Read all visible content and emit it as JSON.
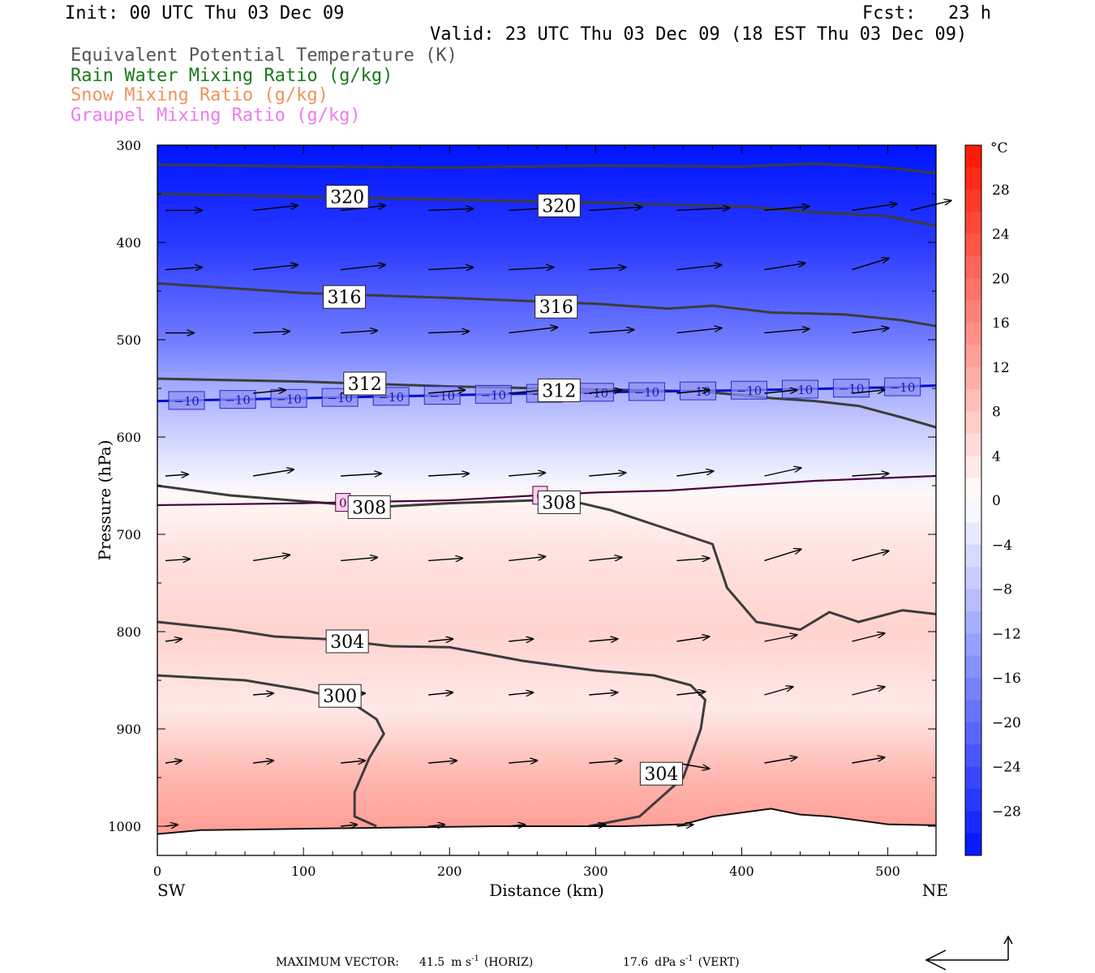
{
  "header": {
    "init": "Init: 00 UTC Thu 03 Dec 09",
    "fcst": "Fcst:   23 h",
    "valid": "Valid: 23 UTC Thu 03 Dec 09 (18 EST Thu 03 Dec 09)",
    "fields": [
      {
        "text": "Equivalent Potential Temperature (K)",
        "color": "#555555"
      },
      {
        "text": "Rain Water Mixing Ratio (g/kg)",
        "color": "#1a7a1a"
      },
      {
        "text": "Snow Mixing Ratio (g/kg)",
        "color": "#f0935a"
      },
      {
        "text": "Graupel Mixing Ratio (g/kg)",
        "color": "#ee7bee"
      }
    ]
  },
  "footer": {
    "max_vector_label": "MAXIMUM VECTOR:",
    "horiz_value": "41.5",
    "horiz_unit": "m s",
    "horiz_exp": "-1",
    "horiz_tag": "(HORIZ)",
    "vert_value": "17.6",
    "vert_unit": "dPa s",
    "vert_exp": "-1",
    "vert_tag": "(VERT)"
  },
  "chart_data": {
    "type": "cross-section",
    "xlabel": "Distance (km)",
    "ylabel": "Pressure (hPa)",
    "xlim": [
      0,
      533
    ],
    "ylim": [
      1030,
      300
    ],
    "x_ticks": [
      0,
      100,
      200,
      300,
      400,
      500
    ],
    "y_ticks": [
      300,
      400,
      500,
      600,
      700,
      800,
      900,
      1000
    ],
    "left_end_label": "SW",
    "right_end_label": "NE",
    "colorbar": {
      "unit": "°C",
      "range": [
        -32,
        32
      ],
      "tick_values": [
        28,
        24,
        20,
        16,
        12,
        8,
        4,
        0,
        -4,
        -8,
        -12,
        -16,
        -20,
        -24,
        -28
      ],
      "tick_labels": [
        "28",
        "24",
        "20",
        "16",
        "12",
        "8",
        "4",
        "0",
        "−4",
        "−8",
        "−12",
        "−16",
        "−20",
        "−24",
        "−28"
      ]
    },
    "temperature_levels": [
      {
        "p": 300,
        "t": -32
      },
      {
        "p": 400,
        "t": -27
      },
      {
        "p": 500,
        "t": -18
      },
      {
        "p": 550,
        "t": -11
      },
      {
        "p": 600,
        "t": -6
      },
      {
        "p": 640,
        "t": -2
      },
      {
        "p": 660,
        "t": 1
      },
      {
        "p": 720,
        "t": 4
      },
      {
        "p": 800,
        "t": 6
      },
      {
        "p": 880,
        "t": 3
      },
      {
        "p": 950,
        "t": 10
      },
      {
        "p": 1000,
        "t": 13
      }
    ],
    "theta_e_contours": [
      {
        "value": "320",
        "points": [
          [
            0,
            320
          ],
          [
            100,
            322
          ],
          [
            200,
            323
          ],
          [
            300,
            321
          ],
          [
            400,
            322
          ],
          [
            450,
            319
          ],
          [
            500,
            323
          ],
          [
            533,
            329
          ]
        ]
      },
      {
        "value": "320",
        "points": [
          [
            0,
            350
          ],
          [
            100,
            353
          ],
          [
            200,
            356
          ],
          [
            300,
            359
          ],
          [
            400,
            363
          ],
          [
            450,
            369
          ],
          [
            500,
            373
          ],
          [
            533,
            383
          ]
        ]
      },
      {
        "value": "316",
        "points": [
          [
            0,
            442
          ],
          [
            100,
            452
          ],
          [
            200,
            457
          ],
          [
            300,
            463
          ],
          [
            350,
            468
          ],
          [
            380,
            465
          ],
          [
            420,
            472
          ],
          [
            470,
            474
          ],
          [
            510,
            480
          ],
          [
            533,
            486
          ]
        ]
      },
      {
        "value": "312",
        "points": [
          [
            0,
            540
          ],
          [
            100,
            543
          ],
          [
            200,
            548
          ],
          [
            300,
            551
          ],
          [
            370,
            553
          ],
          [
            400,
            557
          ],
          [
            420,
            560
          ],
          [
            450,
            563
          ],
          [
            480,
            568
          ],
          [
            510,
            580
          ],
          [
            533,
            590
          ]
        ]
      },
      {
        "value": "308",
        "points": [
          [
            0,
            650
          ],
          [
            50,
            660
          ],
          [
            100,
            666
          ],
          [
            150,
            672
          ],
          [
            200,
            668
          ],
          [
            260,
            665
          ],
          [
            290,
            668
          ],
          [
            310,
            675
          ],
          [
            340,
            690
          ],
          [
            380,
            710
          ],
          [
            390,
            755
          ],
          [
            410,
            790
          ],
          [
            440,
            798
          ],
          [
            460,
            780
          ],
          [
            480,
            790
          ],
          [
            510,
            778
          ],
          [
            533,
            782
          ]
        ]
      },
      {
        "value": "304",
        "points": [
          [
            0,
            790
          ],
          [
            50,
            798
          ],
          [
            80,
            805
          ],
          [
            120,
            808
          ],
          [
            160,
            815
          ],
          [
            200,
            816
          ],
          [
            250,
            830
          ],
          [
            300,
            840
          ],
          [
            340,
            845
          ],
          [
            365,
            855
          ],
          [
            375,
            870
          ],
          [
            372,
            900
          ],
          [
            360,
            950
          ],
          [
            330,
            990
          ],
          [
            295,
            1000
          ]
        ]
      },
      {
        "value": "300",
        "points": [
          [
            0,
            845
          ],
          [
            60,
            850
          ],
          [
            100,
            860
          ],
          [
            130,
            870
          ],
          [
            150,
            890
          ],
          [
            155,
            905
          ],
          [
            145,
            930
          ],
          [
            135,
            965
          ],
          [
            135,
            990
          ],
          [
            150,
            1000
          ]
        ]
      }
    ],
    "contour_labels": [
      {
        "text": "320",
        "x": 130,
        "p": 353
      },
      {
        "text": "320",
        "x": 275,
        "p": 362
      },
      {
        "text": "316",
        "x": 128,
        "p": 456
      },
      {
        "text": "316",
        "x": 273,
        "p": 466
      },
      {
        "text": "312",
        "x": 142,
        "p": 545
      },
      {
        "text": "312",
        "x": 275,
        "p": 552
      },
      {
        "text": "308",
        "x": 145,
        "p": 672
      },
      {
        "text": "308",
        "x": 275,
        "p": 667
      },
      {
        "text": "304",
        "x": 130,
        "p": 810
      },
      {
        "text": "304",
        "x": 345,
        "p": 946
      },
      {
        "text": "300",
        "x": 125,
        "p": 866
      }
    ],
    "isotherm_minus10": {
      "value": "−10",
      "points": [
        [
          0,
          563
        ],
        [
          100,
          560
        ],
        [
          200,
          557
        ],
        [
          300,
          554
        ],
        [
          400,
          552
        ],
        [
          500,
          549
        ],
        [
          533,
          547
        ]
      ],
      "label_x": [
        20,
        55,
        90,
        125,
        160,
        195,
        230,
        265,
        300,
        335,
        370,
        405,
        440,
        475,
        510
      ]
    },
    "isotherm_0": {
      "value": "0",
      "points": [
        [
          0,
          670
        ],
        [
          100,
          668
        ],
        [
          200,
          665
        ],
        [
          260,
          660
        ],
        [
          300,
          657
        ],
        [
          350,
          655
        ],
        [
          400,
          650
        ],
        [
          450,
          645
        ],
        [
          500,
          642
        ],
        [
          533,
          640
        ]
      ],
      "label_x": [
        127,
        262
      ]
    },
    "wind_rows": [
      {
        "p": 367,
        "arrows": [
          [
            0,
            367,
            45,
            0
          ],
          [
            60,
            367,
            55,
            -6
          ],
          [
            120,
            367,
            55,
            -6
          ],
          [
            180,
            367,
            55,
            -2
          ],
          [
            235,
            367,
            55,
            -3
          ],
          [
            290,
            367,
            65,
            -4
          ],
          [
            350,
            367,
            65,
            -3
          ],
          [
            410,
            367,
            55,
            -5
          ],
          [
            470,
            367,
            55,
            -8
          ],
          [
            510,
            367,
            50,
            -12
          ]
        ]
      },
      {
        "p": 428,
        "arrows": [
          [
            0,
            428,
            45,
            -3
          ],
          [
            60,
            428,
            55,
            -6
          ],
          [
            120,
            428,
            55,
            -6
          ],
          [
            180,
            428,
            55,
            -3
          ],
          [
            235,
            428,
            55,
            -3
          ],
          [
            290,
            428,
            45,
            -3
          ],
          [
            350,
            428,
            55,
            -6
          ],
          [
            410,
            428,
            50,
            -8
          ],
          [
            470,
            428,
            45,
            -14
          ]
        ]
      },
      {
        "p": 493,
        "arrows": [
          [
            0,
            493,
            35,
            0
          ],
          [
            60,
            493,
            45,
            -2
          ],
          [
            120,
            493,
            45,
            -3
          ],
          [
            180,
            493,
            50,
            -2
          ],
          [
            235,
            493,
            60,
            -7
          ],
          [
            290,
            493,
            55,
            -4
          ],
          [
            350,
            493,
            55,
            -6
          ],
          [
            410,
            493,
            55,
            -5
          ],
          [
            470,
            493,
            45,
            -6
          ]
        ]
      },
      {
        "p": 555,
        "arrows": [
          [
            60,
            555,
            40,
            -4
          ],
          [
            120,
            555,
            40,
            -4
          ],
          [
            180,
            555,
            45,
            -4
          ],
          [
            235,
            555,
            45,
            -4
          ],
          [
            290,
            555,
            40,
            -4
          ],
          [
            350,
            555,
            40,
            -4
          ],
          [
            410,
            555,
            40,
            -4
          ],
          [
            470,
            555,
            40,
            -4
          ]
        ]
      },
      {
        "p": 640,
        "arrows": [
          [
            0,
            640,
            28,
            -2
          ],
          [
            60,
            640,
            50,
            -8
          ],
          [
            120,
            640,
            50,
            -3
          ],
          [
            180,
            640,
            50,
            -3
          ],
          [
            235,
            640,
            45,
            -4
          ],
          [
            290,
            640,
            45,
            -4
          ],
          [
            350,
            640,
            45,
            -6
          ],
          [
            410,
            640,
            45,
            -10
          ],
          [
            470,
            640,
            45,
            -3
          ]
        ]
      },
      {
        "p": 727,
        "arrows": [
          [
            0,
            727,
            30,
            -2
          ],
          [
            60,
            727,
            45,
            -7
          ],
          [
            120,
            727,
            45,
            -4
          ],
          [
            180,
            727,
            42,
            -3
          ],
          [
            235,
            727,
            45,
            -5
          ],
          [
            290,
            727,
            40,
            -4
          ],
          [
            350,
            727,
            40,
            -3
          ],
          [
            410,
            727,
            45,
            -14
          ],
          [
            470,
            727,
            45,
            -12
          ]
        ]
      },
      {
        "p": 810,
        "arrows": [
          [
            0,
            810,
            20,
            -3
          ],
          [
            120,
            810,
            25,
            -2
          ],
          [
            180,
            810,
            30,
            -3
          ],
          [
            235,
            810,
            30,
            -3
          ],
          [
            290,
            810,
            35,
            -3
          ],
          [
            350,
            810,
            40,
            -6
          ],
          [
            410,
            810,
            40,
            -8
          ],
          [
            470,
            810,
            40,
            -10
          ]
        ]
      },
      {
        "p": 865,
        "arrows": [
          [
            60,
            865,
            25,
            -2
          ],
          [
            120,
            865,
            30,
            -2
          ],
          [
            180,
            865,
            30,
            -3
          ],
          [
            235,
            865,
            30,
            -3
          ],
          [
            290,
            865,
            35,
            -3
          ],
          [
            350,
            865,
            35,
            -4
          ],
          [
            410,
            865,
            35,
            -10
          ],
          [
            470,
            865,
            40,
            -10
          ]
        ]
      },
      {
        "p": 935,
        "arrows": [
          [
            0,
            935,
            20,
            -3
          ],
          [
            60,
            935,
            25,
            -3
          ],
          [
            120,
            935,
            30,
            -3
          ],
          [
            180,
            935,
            35,
            -3
          ],
          [
            235,
            935,
            35,
            -3
          ],
          [
            290,
            935,
            40,
            -3
          ],
          [
            350,
            935,
            40,
            7
          ],
          [
            410,
            935,
            40,
            -7
          ],
          [
            470,
            935,
            40,
            -7
          ]
        ]
      },
      {
        "p": 1000,
        "arrows": [
          [
            0,
            1000,
            15,
            -2
          ],
          [
            120,
            1000,
            20,
            -2
          ],
          [
            180,
            1000,
            20,
            -2
          ],
          [
            235,
            1000,
            20,
            -2
          ],
          [
            290,
            1000,
            20,
            -2
          ],
          [
            350,
            1000,
            20,
            -2
          ]
        ]
      }
    ],
    "terrain_surface": [
      [
        0,
        1008
      ],
      [
        30,
        1004
      ],
      [
        80,
        1003
      ],
      [
        130,
        1002
      ],
      [
        180,
        1001
      ],
      [
        230,
        1000
      ],
      [
        280,
        1000
      ],
      [
        320,
        1000
      ],
      [
        360,
        998
      ],
      [
        380,
        990
      ],
      [
        410,
        984
      ],
      [
        420,
        982
      ],
      [
        440,
        988
      ],
      [
        460,
        990
      ],
      [
        480,
        994
      ],
      [
        500,
        998
      ],
      [
        533,
        999
      ]
    ],
    "max_vector_arrow": {
      "horiz": 41.5,
      "vert": 17.6
    }
  }
}
